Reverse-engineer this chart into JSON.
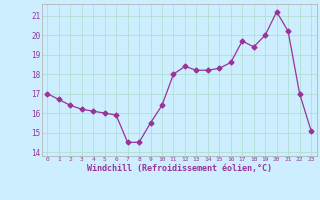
{
  "x": [
    0,
    1,
    2,
    3,
    4,
    5,
    6,
    7,
    8,
    9,
    10,
    11,
    12,
    13,
    14,
    15,
    16,
    17,
    18,
    19,
    20,
    21,
    22,
    23
  ],
  "y": [
    17.0,
    16.7,
    16.4,
    16.2,
    16.1,
    16.0,
    15.9,
    14.5,
    14.5,
    15.5,
    16.4,
    18.0,
    18.4,
    18.2,
    18.2,
    18.3,
    18.6,
    19.7,
    19.4,
    20.0,
    21.2,
    20.2,
    17.0,
    15.1
  ],
  "line_color": "#993399",
  "marker": "D",
  "marker_size": 2.5,
  "bg_color": "#cceeff",
  "grid_color": "#aaddcc",
  "xlabel": "Windchill (Refroidissement éolien,°C)",
  "xlabel_color": "#993399",
  "tick_color": "#993399",
  "ylim": [
    13.8,
    21.6
  ],
  "xlim": [
    -0.5,
    23.5
  ],
  "yticks": [
    14,
    15,
    16,
    17,
    18,
    19,
    20,
    21
  ],
  "xticks": [
    0,
    1,
    2,
    3,
    4,
    5,
    6,
    7,
    8,
    9,
    10,
    11,
    12,
    13,
    14,
    15,
    16,
    17,
    18,
    19,
    20,
    21,
    22,
    23
  ]
}
